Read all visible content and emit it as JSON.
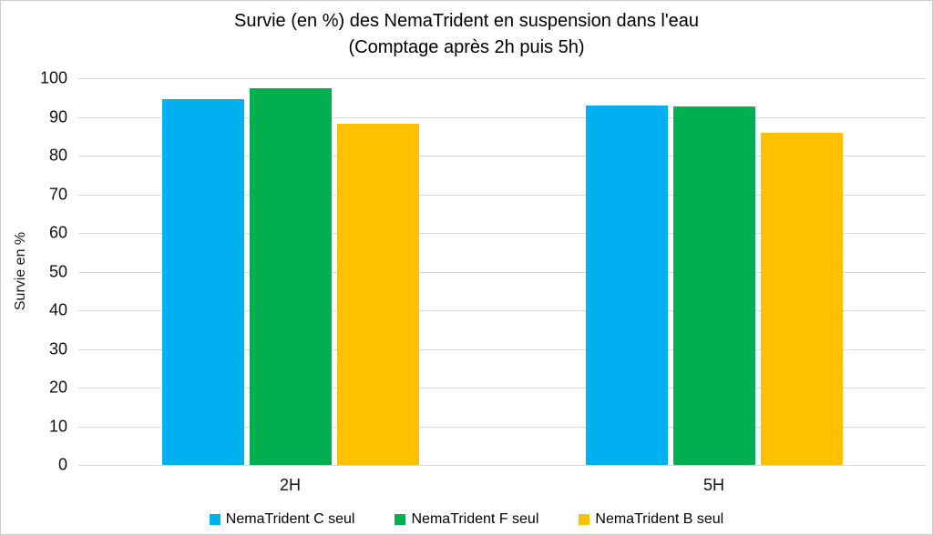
{
  "chart_data": {
    "type": "bar",
    "title": "Survie (en %) des NemaTrident en suspension dans l'eau",
    "subtitle": "(Comptage après 2h puis 5h)",
    "categories": [
      "2H",
      "5H"
    ],
    "series": [
      {
        "name": "NemaTrident C seul",
        "color": "#00B0F0",
        "values": [
          94.5,
          93.0
        ]
      },
      {
        "name": "NemaTrident F seul",
        "color": "#00B050",
        "values": [
          97.5,
          92.7
        ]
      },
      {
        "name": "NemaTrident B seul",
        "color": "#FFC000",
        "values": [
          88.3,
          86.0
        ]
      }
    ],
    "xlabel": "",
    "ylabel": "Survie en %",
    "ylim": [
      0,
      100
    ],
    "ytick_step": 10,
    "grid": true,
    "gridline_color": "#D9D9D9",
    "legend_position": "bottom",
    "background_color": "#FFFFFF",
    "text_color": "#000000"
  }
}
